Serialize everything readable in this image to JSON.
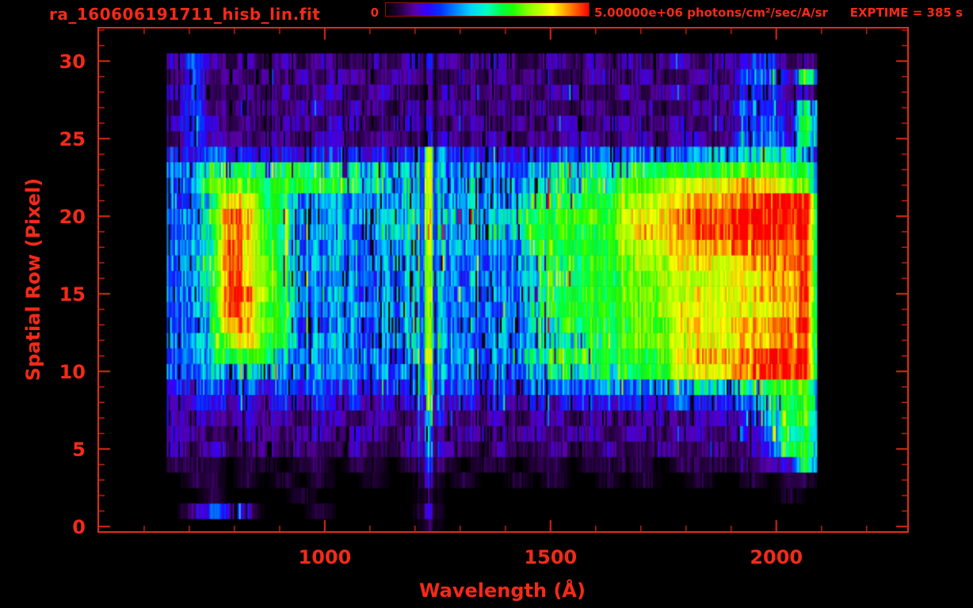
{
  "header": {
    "title": "ra_160606191711_hisb_lin.fit",
    "exptime": "EXPTIME = 385 s",
    "colorbar": {
      "min_label": "0",
      "max_label": "5.00000e+06 photons/cm²/sec/A/sr"
    }
  },
  "accent_colors": {
    "text_red": "#f32a18",
    "axis_red": "#e22c15",
    "background": "#000000"
  },
  "chart_data": {
    "type": "heatmap",
    "title": "ra_160606191711_hisb_lin.fit",
    "xlabel": "Wavelength (Å)",
    "ylabel": "Spatial Row (Pixel)",
    "x_range": [
      500,
      2290
    ],
    "y_range": [
      -0.3,
      32.1
    ],
    "x_major_ticks": [
      1000,
      1500,
      2000
    ],
    "x_minor_tick_step": 100,
    "y_major_ticks": [
      0,
      5,
      10,
      15,
      20,
      25,
      30
    ],
    "y_minor_tick_step": 1,
    "intensity_scale": {
      "min": 0,
      "max": 5000000,
      "units": "photons/cm²/sec/A/sr"
    },
    "wavelength_bins": {
      "start_angstrom": 650,
      "step_angstrom": 40,
      "count": 36
    },
    "row_count": 32,
    "grid_note": "rows listed bottom (spatial row 0) to top (row 31); each string has 36 hex digits (0-f) = relative brightness per 40 A bin, f = 5e6 photons/cm2/sec/A/sr",
    "intensity_grid": [
      "000000000000001000000000000000000000",
      "023320001000002000000000000000000000",
      "001000010000001000000000000000000010",
      "011010101001002010010100101001001011",
      "111011011011013101101101111011111229",
      "212112121121124211211211211211212399",
      "221122122122124122122122122122122489",
      "22222221221221521221221221221222359a",
      "23323232323232723232323333334334479a",
      "3343434343434383434344445455566679aa",
      "4454665454545494545467777899bccdefff",
      "4559a955454545a454557888999acdddefff",
      "456bda8455445595445566788aabbcccddee",
      "446edb84454455944554778999aacccdddef",
      "457fda8545545595454578999aabccccccde",
      "458feb8455455594545488999aabbcccdddf",
      "457fcb8545545595454578899aabbbcccddf",
      "458fcb8455455594454578899abbccccddef",
      "457fca8545546595555588999bbcdddeeeef",
      "457eda84554566a5566699999cdddeefffff",
      "558fda85455566a6666799aa9ccddeefffff",
      "457dc98455455594555588899bbccddeefff",
      "45aaa999887766a4555467788aabbccddcba",
      "45788888776655a4454456677889999aaa99",
      "334333333333339333333344444445556765",
      "142212212212212212212122122122134529",
      "24212122122122212212122122122122342a",
      "141212122122122221212112112112134329",
      "241121212212211212121221121221223322",
      "141212121221222121212112212112124429",
      "242121212112122212211212121221223312",
      "000000000000000000000000000000000000"
    ],
    "notable_features": [
      "bright emission blob rows 12-22 near 770-900 A with red crescent core",
      "narrow green emission stripe (Lyman-alpha ~1210 A) across rows 4-24",
      "continuum brightens from ~1500 A to red saturation near 1900-2090 A",
      "strongest red streaks at rows 18-21 and 10-11 long of 1800 A",
      "faint purple background noise rows 4-8 and 25-30; data span ~650-2090 A"
    ],
    "colormap_stops": [
      [
        0.0,
        "#000000"
      ],
      [
        0.07,
        "#260040"
      ],
      [
        0.14,
        "#5a00a8"
      ],
      [
        0.2,
        "#3300ff"
      ],
      [
        0.27,
        "#0033ff"
      ],
      [
        0.34,
        "#0080ff"
      ],
      [
        0.42,
        "#00d4ff"
      ],
      [
        0.5,
        "#00ffbb"
      ],
      [
        0.57,
        "#00ff44"
      ],
      [
        0.63,
        "#22ff00"
      ],
      [
        0.7,
        "#88ff00"
      ],
      [
        0.78,
        "#d4ff00"
      ],
      [
        0.82,
        "#ffff00"
      ],
      [
        0.88,
        "#ffaa00"
      ],
      [
        0.94,
        "#ff5500"
      ],
      [
        1.0,
        "#ff0000"
      ]
    ]
  }
}
